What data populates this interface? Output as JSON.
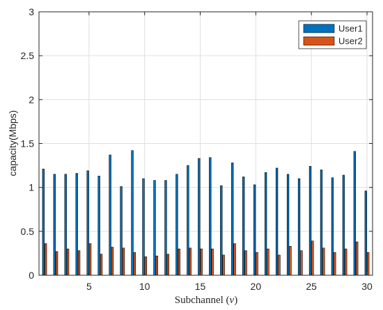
{
  "chart_data": {
    "type": "bar",
    "title": "",
    "xlabel": "Subchannel (",
    "xlabel_var": "v",
    "xlabel_close": ")",
    "ylabel": "capacity(Mbps)",
    "x": [
      1,
      2,
      3,
      4,
      5,
      6,
      7,
      8,
      9,
      10,
      11,
      12,
      13,
      14,
      15,
      16,
      17,
      18,
      19,
      20,
      21,
      22,
      23,
      24,
      25,
      26,
      27,
      28,
      29,
      30
    ],
    "xlim": [
      0.5,
      30.5
    ],
    "ylim": [
      0,
      3
    ],
    "xticks": [
      5,
      10,
      15,
      20,
      25,
      30
    ],
    "yticks": [
      0,
      0.5,
      1,
      1.5,
      2,
      2.5,
      3
    ],
    "xtick_labels": [
      "5",
      "10",
      "15",
      "20",
      "25",
      "30"
    ],
    "ytick_labels": [
      "0",
      "0.5",
      "1",
      "1.5",
      "2",
      "2.5",
      "3"
    ],
    "grid": true,
    "legend_position": "top-right",
    "series": [
      {
        "name": "User1",
        "color": "#0072bd",
        "values": [
          1.21,
          1.15,
          1.15,
          1.16,
          1.19,
          1.13,
          1.37,
          1.01,
          1.42,
          1.1,
          1.08,
          1.08,
          1.15,
          1.25,
          1.33,
          1.34,
          1.02,
          1.28,
          1.12,
          1.03,
          1.17,
          1.22,
          1.15,
          1.1,
          1.24,
          1.2,
          1.11,
          1.14,
          1.41,
          0.96
        ]
      },
      {
        "name": "User2",
        "color": "#d95319",
        "values": [
          0.36,
          0.27,
          0.3,
          0.28,
          0.36,
          0.24,
          0.32,
          0.31,
          0.26,
          0.21,
          0.22,
          0.24,
          0.3,
          0.31,
          0.3,
          0.3,
          0.23,
          0.36,
          0.28,
          0.26,
          0.3,
          0.23,
          0.33,
          0.28,
          0.39,
          0.31,
          0.26,
          0.3,
          0.38,
          0.26
        ]
      }
    ]
  }
}
